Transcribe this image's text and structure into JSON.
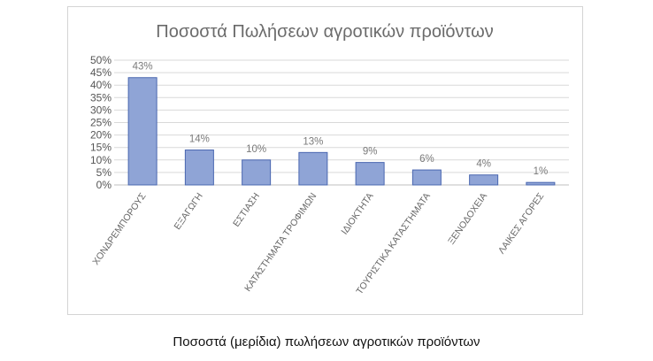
{
  "caption": "Ποσοστά (μερίδια) πωλήσεων αγροτικών προϊόντων",
  "colors": {
    "bar_fill": "#8fa4d6",
    "bar_stroke": "#4a67b0",
    "grid": "#d9d9d9"
  },
  "chart_data": {
    "type": "bar",
    "title": "Ποσοστά Πωλήσεων αγροτικών προϊόντων",
    "xlabel": "",
    "ylabel": "",
    "categories": [
      "ΧΟΝΔΡΕΜΠΟΡΟΥΣ",
      "ΕΞΑΓΩΓΗ",
      "ΕΣΤΙΑΣΗ",
      "ΚΑΤΑΣΤΗΜΑΤΑ ΤΡΟΦΙΜΩΝ",
      "ΙΔΙΟΚΤΗΤΑ",
      "ΤΟΥΡΙΣΤΙΚΑ ΚΑΤΑΣΤΗΜΑΤΑ",
      "ΞΕΝΟΔΟΧΕΙΑ",
      "ΛΑΙΚΕΣ ΑΓΟΡΕΣ"
    ],
    "values": [
      43,
      14,
      10,
      13,
      9,
      6,
      4,
      1
    ],
    "data_labels": [
      "43%",
      "14%",
      "10%",
      "13%",
      "9%",
      "6%",
      "4%",
      "1%"
    ],
    "yticks": [
      "0%",
      "5%",
      "10%",
      "15%",
      "20%",
      "25%",
      "30%",
      "35%",
      "40%",
      "45%",
      "50%"
    ],
    "ylim": [
      0,
      50
    ],
    "grid": true,
    "legend": "none"
  }
}
